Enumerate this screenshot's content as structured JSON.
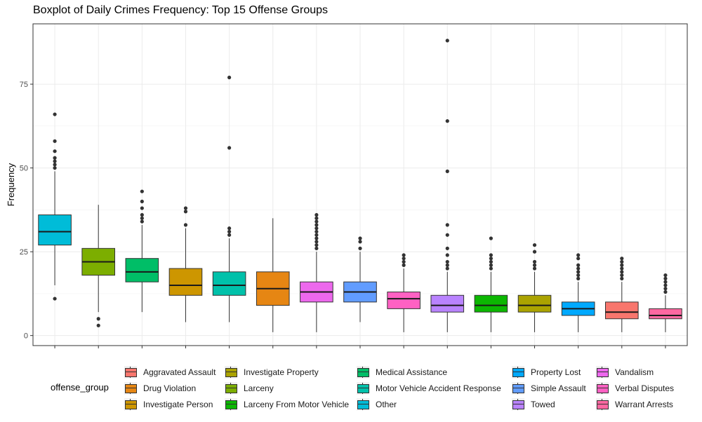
{
  "chart_data": {
    "type": "boxplot",
    "title": "Boxplot of Daily Crimes Frequency: Top 15 Offense Groups",
    "xlabel": "",
    "ylabel": "Frequency",
    "ylim": [
      -3,
      93
    ],
    "yticks": [
      0,
      25,
      50,
      75
    ],
    "grid": true,
    "legend_title": "offense_group",
    "legend_position": "bottom",
    "groups": [
      {
        "name": "Other",
        "color": "#00BCD8",
        "x_order": 1,
        "min": 15,
        "q1": 27,
        "median": 31,
        "q3": 36,
        "max": 49,
        "outliers": [
          11,
          50,
          51,
          52,
          53,
          55,
          58,
          66
        ]
      },
      {
        "name": "Larceny",
        "color": "#7CAE00",
        "x_order": 2,
        "min": 7,
        "q1": 18,
        "median": 22,
        "q3": 26,
        "max": 39,
        "outliers": [
          3,
          5
        ]
      },
      {
        "name": "Medical Assistance",
        "color": "#00BE67",
        "x_order": 3,
        "min": 7,
        "q1": 16,
        "median": 19,
        "q3": 23,
        "max": 33,
        "outliers": [
          34,
          35,
          36,
          38,
          40,
          43
        ]
      },
      {
        "name": "Investigate Person",
        "color": "#CD9600",
        "x_order": 4,
        "min": 4,
        "q1": 12,
        "median": 15,
        "q3": 20,
        "max": 32,
        "outliers": [
          33,
          37,
          38
        ]
      },
      {
        "name": "Motor Vehicle Accident Response",
        "color": "#00C1AA",
        "x_order": 5,
        "min": 4,
        "q1": 12,
        "median": 15,
        "q3": 19,
        "max": 29,
        "outliers": [
          30,
          31,
          32,
          56,
          77
        ]
      },
      {
        "name": "Drug Violation",
        "color": "#E68613",
        "x_order": 6,
        "min": 1,
        "q1": 9,
        "median": 14,
        "q3": 19,
        "max": 35,
        "outliers": []
      },
      {
        "name": "Vandalism",
        "color": "#ED68ED",
        "x_order": 7,
        "min": 1,
        "q1": 10,
        "median": 13,
        "q3": 16,
        "max": 25,
        "outliers": [
          26,
          27,
          28,
          29,
          30,
          31,
          32,
          33,
          34,
          35,
          36
        ]
      },
      {
        "name": "Simple Assault",
        "color": "#619CFF",
        "x_order": 8,
        "min": 4,
        "q1": 10,
        "median": 13,
        "q3": 16,
        "max": 25,
        "outliers": [
          26,
          28,
          29
        ]
      },
      {
        "name": "Verbal Disputes",
        "color": "#FF61C3",
        "x_order": 9,
        "min": 1,
        "q1": 8,
        "median": 11,
        "q3": 13,
        "max": 20,
        "outliers": [
          21,
          22,
          23,
          24
        ]
      },
      {
        "name": "Towed",
        "color": "#B983FF",
        "x_order": 10,
        "min": 1,
        "q1": 7,
        "median": 9,
        "q3": 12,
        "max": 19,
        "outliers": [
          20,
          21,
          22,
          24,
          26,
          30,
          33,
          49,
          64,
          88
        ]
      },
      {
        "name": "Larceny From Motor Vehicle",
        "color": "#0CB702",
        "x_order": 11,
        "min": 1,
        "q1": 7,
        "median": 9,
        "q3": 12,
        "max": 19,
        "outliers": [
          20,
          21,
          22,
          23,
          24,
          29
        ]
      },
      {
        "name": "Investigate Property",
        "color": "#ABA300",
        "x_order": 12,
        "min": 1,
        "q1": 7,
        "median": 9,
        "q3": 12,
        "max": 19,
        "outliers": [
          20,
          21,
          22,
          25,
          27
        ]
      },
      {
        "name": "Property Lost",
        "color": "#00A9FF",
        "x_order": 13,
        "min": 1,
        "q1": 6,
        "median": 8,
        "q3": 10,
        "max": 16,
        "outliers": [
          17,
          18,
          19,
          20,
          21,
          23,
          24
        ]
      },
      {
        "name": "Aggravated Assault",
        "color": "#F8766D",
        "x_order": 14,
        "min": 1,
        "q1": 5,
        "median": 7,
        "q3": 10,
        "max": 16,
        "outliers": [
          17,
          18,
          19,
          20,
          21,
          22,
          23
        ]
      },
      {
        "name": "Warrant Arrests",
        "color": "#FF68A1",
        "x_order": 15,
        "min": 1,
        "q1": 5,
        "median": 6,
        "q3": 8,
        "max": 12,
        "outliers": [
          13,
          14,
          15,
          16,
          17,
          18
        ]
      }
    ],
    "legend_items": [
      [
        "Aggravated Assault",
        "Drug Violation",
        "Investigate Person"
      ],
      [
        "Investigate Property",
        "Larceny",
        "Larceny From Motor Vehicle"
      ],
      [
        "Medical Assistance",
        "Motor Vehicle Accident Response",
        "Other"
      ],
      [
        "Property Lost",
        "Simple Assault",
        "Towed"
      ],
      [
        "Vandalism",
        "Verbal Disputes",
        "Warrant Arrests"
      ]
    ]
  }
}
